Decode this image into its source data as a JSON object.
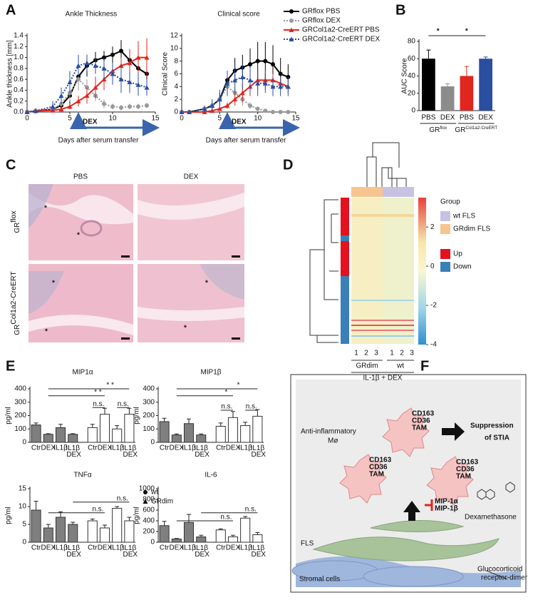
{
  "panel_labels": [
    "A",
    "B",
    "C",
    "D",
    "E",
    "F"
  ],
  "chart_data": [
    {
      "type": "line",
      "title": "Ankle Thickness",
      "ylabel": "Ankle thickness [mm]",
      "xlabel": "Days after serum transfer",
      "x": [
        0,
        1,
        3,
        4,
        5,
        6,
        7,
        8,
        9,
        10,
        11,
        12,
        13,
        14
      ],
      "xlim": [
        0,
        15
      ],
      "xticks": [
        0,
        5,
        10,
        15
      ],
      "ylim": [
        0,
        1.4
      ],
      "yticks": [
        {
          "value": 0,
          "label": "0.0"
        },
        {
          "value": 0.2,
          "label": "0.2"
        },
        {
          "value": 0.4,
          "label": "0.4"
        },
        {
          "value": 0.6,
          "label": "0.6"
        },
        {
          "value": 0.8,
          "label": "0.8"
        },
        {
          "value": 1,
          "label": "1.0"
        },
        {
          "value": 1.2,
          "label": "1.2"
        },
        {
          "value": 1.4,
          "label": "1.4"
        }
      ],
      "annotation": "DEX",
      "annotation_x": [
        6,
        15
      ],
      "series": [
        {
          "name": "GRflox PBS",
          "color": "#000000",
          "marker": "circle",
          "dashed": false,
          "values": [
            0,
            0.02,
            0.05,
            0.12,
            0.3,
            0.65,
            0.85,
            0.95,
            1.0,
            1.05,
            1.12,
            0.95,
            0.8,
            0.7
          ],
          "errors": [
            0,
            0.02,
            0.05,
            0.1,
            0.15,
            0.25,
            0.2,
            0.15,
            0.12,
            0.15,
            0.2,
            0.2,
            0.15,
            0.12
          ]
        },
        {
          "name": "GRflox DEX",
          "color": "#999999",
          "marker": "circle",
          "dashed": true,
          "values": [
            0,
            0.02,
            0.05,
            0.15,
            0.35,
            0.6,
            0.45,
            0.3,
            0.15,
            0.1,
            0.08,
            0.1,
            0.1,
            0.12
          ],
          "errors": [
            0,
            0.02,
            0.05,
            0.1,
            0.15,
            0.2,
            0.15,
            0.1,
            0.08,
            0.05,
            0.05,
            0.05,
            0.05,
            0.05
          ]
        },
        {
          "name": "GRCol1a2-CreERT PBS",
          "color": "#e0261f",
          "marker": "triangle",
          "dashed": false,
          "values": [
            0,
            0.02,
            0.03,
            0.05,
            0.1,
            0.2,
            0.3,
            0.45,
            0.6,
            0.75,
            0.85,
            0.9,
            1.0,
            1.0
          ],
          "errors": [
            0,
            0.02,
            0.03,
            0.05,
            0.05,
            0.1,
            0.15,
            0.2,
            0.2,
            0.15,
            0.15,
            0.25,
            0.3,
            0.35
          ]
        },
        {
          "name": "GRCol1a2-CreERT DEX",
          "color": "#2a4ea0",
          "marker": "triangle",
          "dashed": true,
          "values": [
            0,
            0.02,
            0.1,
            0.3,
            0.55,
            0.85,
            0.9,
            0.85,
            0.8,
            0.7,
            0.6,
            0.55,
            0.5,
            0.45
          ],
          "errors": [
            0,
            0.05,
            0.1,
            0.15,
            0.2,
            0.2,
            0.15,
            0.15,
            0.2,
            0.2,
            0.25,
            0.2,
            0.2,
            0.15
          ]
        }
      ]
    },
    {
      "type": "line",
      "title": "Clinical score",
      "ylabel": "Clinical Score",
      "xlabel": "Days after serum transfer",
      "x": [
        0,
        1,
        3,
        4,
        5,
        6,
        7,
        8,
        9,
        10,
        11,
        12,
        13,
        14
      ],
      "xlim": [
        0,
        15
      ],
      "xticks": [
        0,
        5,
        10,
        15
      ],
      "ylim": [
        0,
        12
      ],
      "yticks": [
        0,
        2,
        4,
        6,
        8,
        10,
        12
      ],
      "annotation": "DEX",
      "annotation_x": [
        6,
        15
      ],
      "series": [
        {
          "color": "#000000",
          "marker": "circle",
          "dashed": false,
          "values": [
            0,
            0,
            0.5,
            1,
            2,
            5,
            6.5,
            7,
            7.5,
            8,
            8,
            7.5,
            6,
            5.5
          ],
          "errors": [
            0,
            0,
            0.5,
            0.5,
            1,
            1.5,
            2,
            2,
            2.5,
            3,
            3,
            3,
            2.5,
            2
          ]
        },
        {
          "color": "#999999",
          "marker": "circle",
          "dashed": true,
          "values": [
            0,
            0,
            0.5,
            1,
            2,
            4,
            3,
            2,
            1,
            0.5,
            0.2,
            0,
            0,
            0
          ],
          "errors": [
            0,
            0,
            0.5,
            0.5,
            1,
            1.5,
            1,
            1,
            0.5,
            0.3,
            0.2,
            0,
            0,
            0
          ]
        },
        {
          "color": "#e0261f",
          "marker": "triangle",
          "dashed": false,
          "values": [
            0,
            0,
            0,
            0.2,
            0.5,
            1,
            2,
            3,
            4,
            5,
            5,
            5,
            4.5,
            4
          ],
          "errors": [
            0,
            0,
            0,
            0.2,
            0.3,
            0.5,
            1,
            1.5,
            1.5,
            1.5,
            1.5,
            1,
            1,
            1
          ]
        },
        {
          "color": "#2a4ea0",
          "marker": "triangle",
          "dashed": true,
          "values": [
            0,
            0,
            0.5,
            1,
            2,
            4.5,
            5,
            5.5,
            5,
            4.5,
            4.5,
            4,
            4,
            4
          ],
          "errors": [
            0,
            0,
            0.5,
            1,
            1.5,
            2,
            2,
            2,
            2,
            2,
            1.5,
            1.5,
            1.5,
            1.5
          ]
        }
      ]
    },
    {
      "type": "bar",
      "ylabel": "AUC Score",
      "categories": [
        "PBS",
        "DEX",
        "PBS",
        "DEX"
      ],
      "values": [
        60,
        28,
        40,
        60
      ],
      "errors": [
        10,
        3,
        11,
        2
      ],
      "colors": [
        "#000000",
        "#8c8c8c",
        "#e0261f",
        "#2a4ea0"
      ],
      "ylim": [
        0,
        80
      ],
      "yticks": [
        0,
        20,
        40,
        60,
        80
      ],
      "group_labels": [
        [
          "GR",
          "flox"
        ],
        [
          "GR",
          "Col1a2-CreERT"
        ]
      ],
      "annotations": [
        "*",
        "*"
      ]
    },
    {
      "type": "bar",
      "title": "MIP1α",
      "ylabel": "pg/ml",
      "categories": [
        "Ctr",
        "DEX",
        "IL1β",
        "IL1β DEX"
      ],
      "ylim": [
        0,
        400
      ],
      "yticks": [
        0,
        100,
        200,
        300,
        400
      ],
      "series": [
        {
          "color": "#7f7f7f",
          "values": [
            130,
            60,
            110,
            60
          ],
          "errors": [
            15,
            5,
            25,
            5
          ]
        },
        {
          "color": "#ffffff",
          "values": [
            110,
            210,
            100,
            210
          ],
          "errors": [
            25,
            45,
            25,
            45
          ]
        }
      ],
      "annotations": [
        "* *",
        "* *",
        "n.s.",
        "n.s."
      ]
    },
    {
      "type": "bar",
      "title": "MIP1β",
      "ylabel": "pg/ml",
      "categories": [
        "Ctr",
        "DEX",
        "IL1β",
        "IL1β DEX"
      ],
      "ylim": [
        0,
        400
      ],
      "yticks": [
        0,
        100,
        200,
        300,
        400
      ],
      "series": [
        {
          "color": "#7f7f7f",
          "values": [
            155,
            55,
            140,
            55
          ],
          "errors": [
            25,
            8,
            35,
            8
          ]
        },
        {
          "color": "#ffffff",
          "values": [
            120,
            185,
            125,
            195
          ],
          "errors": [
            25,
            45,
            25,
            50
          ]
        }
      ],
      "annotations": [
        "*",
        "*",
        "n.s.",
        "n.s."
      ]
    },
    {
      "type": "bar",
      "title": "TNFα",
      "ylabel": "pg/ml",
      "categories": [
        "Ctr",
        "DEX",
        "IL1β",
        "IL1β DEX"
      ],
      "ylim": [
        0,
        15
      ],
      "yticks": [
        0,
        5,
        10,
        15
      ],
      "series": [
        {
          "name": "wt",
          "marker": "circle",
          "color": "#7f7f7f",
          "values": [
            9,
            4,
            7,
            5
          ],
          "errors": [
            2.5,
            1,
            1.5,
            0.6
          ]
        },
        {
          "name": "GRdim",
          "marker": "triangle",
          "color": "#ffffff",
          "values": [
            6,
            4,
            9.5,
            6
          ],
          "errors": [
            0.5,
            0.8,
            0.5,
            1
          ]
        }
      ],
      "annotations": [
        "n.s.",
        "n.s."
      ]
    },
    {
      "type": "bar",
      "title": "IL-6",
      "ylabel": "pg/ml",
      "categories": [
        "Ctr",
        "DEX",
        "IL1β",
        "IL1β DEX"
      ],
      "ylim": [
        0,
        1000
      ],
      "yticks": [
        0,
        200,
        400,
        600,
        800,
        1000
      ],
      "series": [
        {
          "color": "#7f7f7f",
          "values": [
            310,
            60,
            370,
            100
          ],
          "errors": [
            80,
            10,
            150,
            30
          ]
        },
        {
          "color": "#ffffff",
          "values": [
            230,
            100,
            450,
            140
          ],
          "errors": [
            20,
            30,
            30,
            40
          ]
        }
      ],
      "annotations": [
        "n.s.",
        "n.s."
      ]
    }
  ],
  "histology": {
    "columns": [
      "PBS",
      "DEX"
    ],
    "rows": [
      [
        "GR",
        "flox"
      ],
      [
        "GR",
        "Col1a2-CreERT"
      ]
    ],
    "markers": [
      "*",
      "*",
      "*",
      "*",
      "*",
      "*"
    ]
  },
  "heatmap": {
    "legend_title": "Group",
    "groups": [
      {
        "name": "wt FLS",
        "color": "#c8c2e2"
      },
      {
        "name": "GRdim FLS",
        "color": "#f6c48e"
      }
    ],
    "regulation": [
      {
        "name": "Up",
        "color": "#e3121e"
      },
      {
        "name": "Down",
        "color": "#3a7fb8"
      }
    ],
    "colorbar_lim": [
      -4,
      3.5
    ],
    "colorbar_ticks": [
      2,
      0,
      -2,
      -4
    ],
    "column_labels": [
      "1",
      "2",
      "3",
      "1",
      "2",
      "3"
    ],
    "group_labels": [
      "GRdim",
      "wt"
    ],
    "treatment": "IL-1β + DEX"
  },
  "diagram": {
    "macrophage": [
      "Anti-inflammatory",
      "Mø"
    ],
    "tam": [
      "CD163",
      "CD36",
      "TAM"
    ],
    "outcome": [
      "Suppression",
      "of STIA"
    ],
    "inhibitor": [
      "MIP-1α",
      "MIP-1β"
    ],
    "drug": "Dexamethasone",
    "fls": "FLS",
    "stromal": "Stromal cells",
    "receptor": [
      "Glucocorticoid",
      "receptor-dimer"
    ]
  }
}
